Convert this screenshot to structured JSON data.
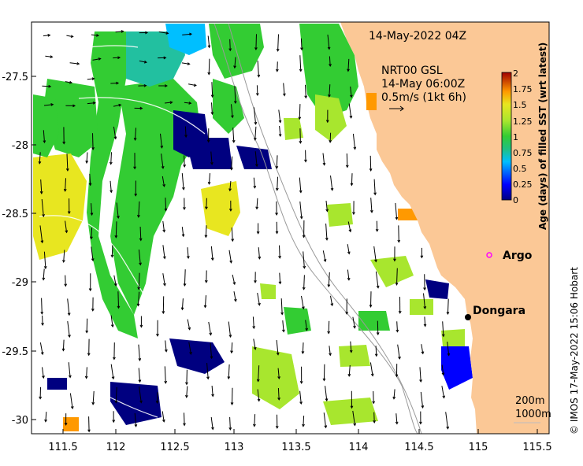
{
  "map": {
    "timestamp": "14-May-2022 04Z",
    "current_source": "NRT00 GSL",
    "current_time": "14-May 06:00Z",
    "scale_label": "0.5m/s (1kt 6h)",
    "depth_contours": [
      "200m",
      "1000m"
    ],
    "credit": "© IMOS 17-May-2022 15:06 Hobart",
    "land_color": "#fbc896",
    "places": [
      {
        "name": "Argo",
        "lon": 115.1,
        "lat": -28.88,
        "kind": "argo-float"
      },
      {
        "name": "Dongara",
        "lon": 114.93,
        "lat": -29.26,
        "kind": "town"
      }
    ],
    "axes": {
      "lon_ticks": [
        "111.5",
        "112",
        "112.5",
        "113",
        "113.5",
        "114",
        "114.5",
        "115",
        "115.5"
      ],
      "lat_ticks": [
        "-27.5",
        "-28",
        "-28.5",
        "-29",
        "-29.5",
        "-30"
      ]
    },
    "colorbar": {
      "title": "Age (days) of filled SST (wrt latest)",
      "ticks": [
        "0",
        "0.25",
        "0.5",
        "0.75",
        "1",
        "1.25",
        "1.5",
        "1.75",
        "2"
      ],
      "min": 0,
      "max": 2
    }
  }
}
